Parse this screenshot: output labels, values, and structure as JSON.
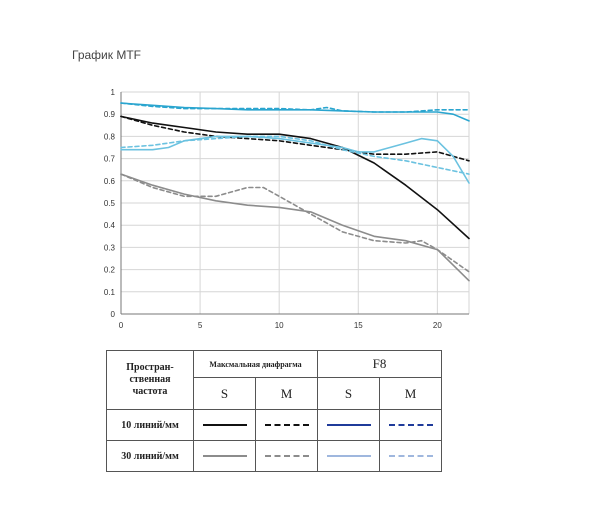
{
  "page": {
    "title": "График MTF"
  },
  "chart_data": {
    "type": "line",
    "title": "",
    "xlabel": "",
    "ylabel": "",
    "xlim": [
      0,
      22
    ],
    "ylim": [
      0,
      1
    ],
    "x_ticks": [
      "0",
      "5",
      "10",
      "15",
      "20"
    ],
    "y_ticks": [
      "0",
      "0.1",
      "0.2",
      "0.3",
      "0.4",
      "0.5",
      "0.6",
      "0.7",
      "0.8",
      "0.9",
      "1"
    ],
    "x_tick_values": [
      0,
      5,
      10,
      15,
      20
    ],
    "y_tick_values": [
      0,
      0.1,
      0.2,
      0.3,
      0.4,
      0.5,
      0.6,
      0.7,
      0.8,
      0.9,
      1
    ],
    "grid": true,
    "series": [
      {
        "color": "#111111",
        "dashed": false,
        "x": [
          0,
          2,
          4,
          6,
          8,
          10,
          12,
          14,
          16,
          18,
          20,
          22
        ],
        "y": [
          0.89,
          0.86,
          0.84,
          0.82,
          0.81,
          0.81,
          0.79,
          0.75,
          0.68,
          0.58,
          0.47,
          0.34
        ]
      },
      {
        "color": "#111111",
        "dashed": true,
        "x": [
          0,
          2,
          4,
          6,
          8,
          10,
          12,
          14,
          16,
          18,
          20,
          22
        ],
        "y": [
          0.89,
          0.85,
          0.82,
          0.8,
          0.79,
          0.78,
          0.76,
          0.74,
          0.72,
          0.72,
          0.73,
          0.69
        ]
      },
      {
        "color": "#2aa5cf",
        "dashed": false,
        "x": [
          0,
          2,
          4,
          6,
          8,
          10,
          12,
          14,
          16,
          18,
          20,
          21,
          22
        ],
        "y": [
          0.95,
          0.94,
          0.93,
          0.925,
          0.92,
          0.92,
          0.92,
          0.915,
          0.91,
          0.91,
          0.91,
          0.9,
          0.87
        ]
      },
      {
        "color": "#2aa5cf",
        "dashed": true,
        "x": [
          0,
          2,
          4,
          6,
          8,
          10,
          12,
          13,
          14,
          16,
          18,
          20,
          22
        ],
        "y": [
          0.95,
          0.935,
          0.925,
          0.925,
          0.925,
          0.925,
          0.92,
          0.93,
          0.915,
          0.91,
          0.91,
          0.92,
          0.92
        ]
      },
      {
        "color": "#6bc2e0",
        "dashed": false,
        "x": [
          0,
          2,
          3,
          4,
          6,
          8,
          10,
          12,
          14,
          15,
          16,
          17,
          18,
          19,
          20,
          21,
          22
        ],
        "y": [
          0.74,
          0.74,
          0.75,
          0.78,
          0.8,
          0.8,
          0.79,
          0.77,
          0.75,
          0.73,
          0.73,
          0.75,
          0.77,
          0.79,
          0.78,
          0.71,
          0.59
        ]
      },
      {
        "color": "#6bc2e0",
        "dashed": true,
        "x": [
          0,
          2,
          4,
          6,
          8,
          10,
          12,
          14,
          16,
          18,
          20,
          22
        ],
        "y": [
          0.75,
          0.76,
          0.78,
          0.79,
          0.8,
          0.8,
          0.78,
          0.74,
          0.71,
          0.69,
          0.66,
          0.63
        ]
      },
      {
        "color": "#8c8c8c",
        "dashed": false,
        "x": [
          0,
          2,
          4,
          6,
          8,
          10,
          12,
          14,
          16,
          18,
          20,
          22
        ],
        "y": [
          0.63,
          0.58,
          0.54,
          0.51,
          0.49,
          0.48,
          0.46,
          0.4,
          0.35,
          0.33,
          0.29,
          0.15
        ]
      },
      {
        "color": "#8c8c8c",
        "dashed": true,
        "x": [
          0,
          2,
          4,
          6,
          7,
          8,
          9,
          10,
          12,
          14,
          16,
          18,
          19,
          20,
          22
        ],
        "y": [
          0.63,
          0.57,
          0.53,
          0.53,
          0.55,
          0.57,
          0.57,
          0.53,
          0.45,
          0.37,
          0.33,
          0.32,
          0.33,
          0.29,
          0.19
        ]
      }
    ]
  },
  "legend_table": {
    "freq_header": "Простран-\nственная\nчастота",
    "group1_header": "Максмальная диафрагма",
    "group2_header": "F8",
    "sub_labels": [
      "S",
      "M",
      "S",
      "M"
    ],
    "rows": [
      {
        "label": "10 линий/мм",
        "samples": [
          {
            "color": "#111111",
            "dashed": false
          },
          {
            "color": "#111111",
            "dashed": true
          },
          {
            "color": "#1f3b9a",
            "dashed": false
          },
          {
            "color": "#1f3b9a",
            "dashed": true
          }
        ]
      },
      {
        "label": "30 линий/мм",
        "samples": [
          {
            "color": "#8c8c8c",
            "dashed": false
          },
          {
            "color": "#8c8c8c",
            "dashed": true
          },
          {
            "color": "#9fb7de",
            "dashed": false
          },
          {
            "color": "#9fb7de",
            "dashed": true
          }
        ]
      }
    ]
  }
}
